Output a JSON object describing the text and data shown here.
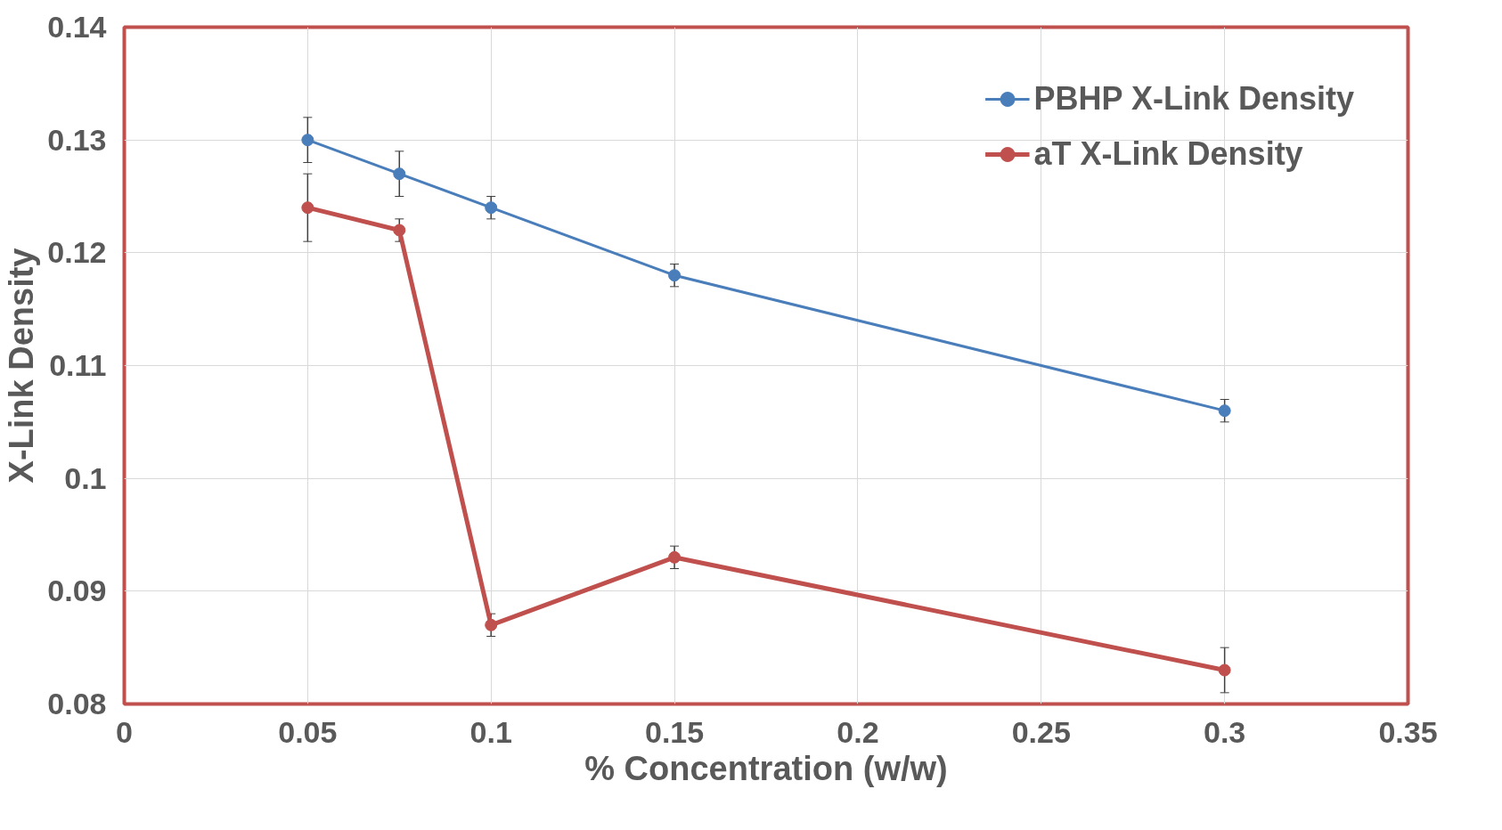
{
  "chart_data": {
    "type": "line",
    "xlabel": "% Concentration (w/w)",
    "ylabel": "X-Link Density",
    "x": [
      0.05,
      0.075,
      0.1,
      0.15,
      0.3
    ],
    "series": [
      {
        "name": "PBHP X-Link Density",
        "color": "#4a7ebb",
        "values": [
          0.13,
          0.127,
          0.124,
          0.118,
          0.106
        ],
        "errors": [
          0.002,
          0.002,
          0.001,
          0.001,
          0.001
        ]
      },
      {
        "name": "aT X-Link Density",
        "color": "#c0504d",
        "values": [
          0.124,
          0.122,
          0.087,
          0.093,
          0.083
        ],
        "errors": [
          0.003,
          0.001,
          0.001,
          0.001,
          0.002
        ]
      }
    ],
    "xlim": [
      0,
      0.35
    ],
    "xticks": [
      0,
      0.05,
      0.1,
      0.15,
      0.2,
      0.25,
      0.3,
      0.35
    ],
    "ylim": [
      0.08,
      0.14
    ],
    "yticks": [
      0.08,
      0.09,
      0.1,
      0.11,
      0.12,
      0.13,
      0.14
    ],
    "grid": true,
    "legend": "top right",
    "marker": "circle",
    "line_style": "solid"
  }
}
